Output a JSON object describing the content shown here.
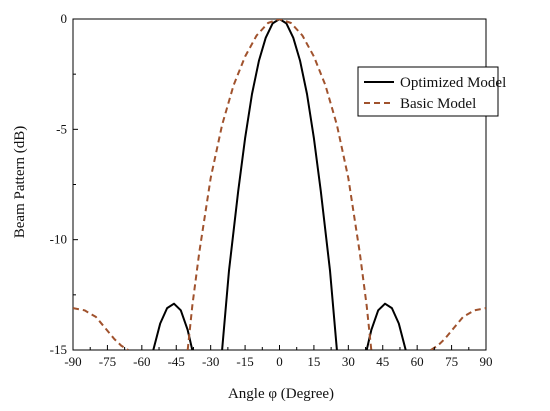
{
  "chart_data": {
    "type": "line",
    "xlabel": "Angle φ (Degree)",
    "ylabel": "Beam Pattern (dB)",
    "xlim": [
      -90,
      90
    ],
    "ylim": [
      -15,
      0
    ],
    "xticks": [
      "-90",
      "-75",
      "-60",
      "-45",
      "-30",
      "-15",
      "0",
      "15",
      "30",
      "45",
      "60",
      "75",
      "90"
    ],
    "yticks": [
      "0",
      "-5",
      "-10",
      "-15"
    ],
    "legend_position": "top-right",
    "grid": false,
    "series": [
      {
        "name": "Optimized Model",
        "color": "#000000",
        "dash": "solid",
        "segments": [
          {
            "x": [
              -55,
              -52,
              -49,
              -46,
              -43,
              -40,
              -38
            ],
            "y": [
              -15,
              -13.8,
              -13.1,
              -12.9,
              -13.2,
              -14.1,
              -15
            ]
          },
          {
            "x": [
              -25,
              -22,
              -18,
              -15,
              -12,
              -9,
              -6,
              -3,
              0,
              3,
              6,
              9,
              12,
              15,
              18,
              22,
              25
            ],
            "y": [
              -15,
              -11.4,
              -7.8,
              -5.4,
              -3.4,
              -1.9,
              -0.85,
              -0.2,
              0,
              -0.2,
              -0.85,
              -1.9,
              -3.4,
              -5.4,
              -7.8,
              -11.4,
              -15
            ]
          },
          {
            "x": [
              38,
              40,
              43,
              46,
              49,
              52,
              55
            ],
            "y": [
              -15,
              -14.1,
              -13.2,
              -12.9,
              -13.1,
              -13.8,
              -15
            ]
          }
        ]
      },
      {
        "name": "Basic Model",
        "color": "#a0522d",
        "dash": "dashed",
        "segments": [
          {
            "x": [
              -90,
              -85,
              -80,
              -76,
              -72,
              -69,
              -66
            ],
            "y": [
              -13.1,
              -13.2,
              -13.5,
              -14.0,
              -14.5,
              -14.8,
              -15
            ]
          },
          {
            "x": [
              -40,
              -38,
              -35,
              -30,
              -25,
              -20,
              -15,
              -10,
              -5,
              0,
              5,
              10,
              15,
              20,
              25,
              30,
              35,
              38,
              40
            ],
            "y": [
              -15,
              -13.0,
              -10.6,
              -7.2,
              -4.8,
              -3.0,
              -1.7,
              -0.75,
              -0.18,
              0,
              -0.18,
              -0.75,
              -1.7,
              -3.0,
              -4.8,
              -7.2,
              -10.6,
              -13.0,
              -15
            ]
          },
          {
            "x": [
              66,
              69,
              72,
              76,
              80,
              85,
              90
            ],
            "y": [
              -15,
              -14.8,
              -14.5,
              -14.0,
              -13.5,
              -13.2,
              -13.1
            ]
          }
        ]
      }
    ]
  }
}
